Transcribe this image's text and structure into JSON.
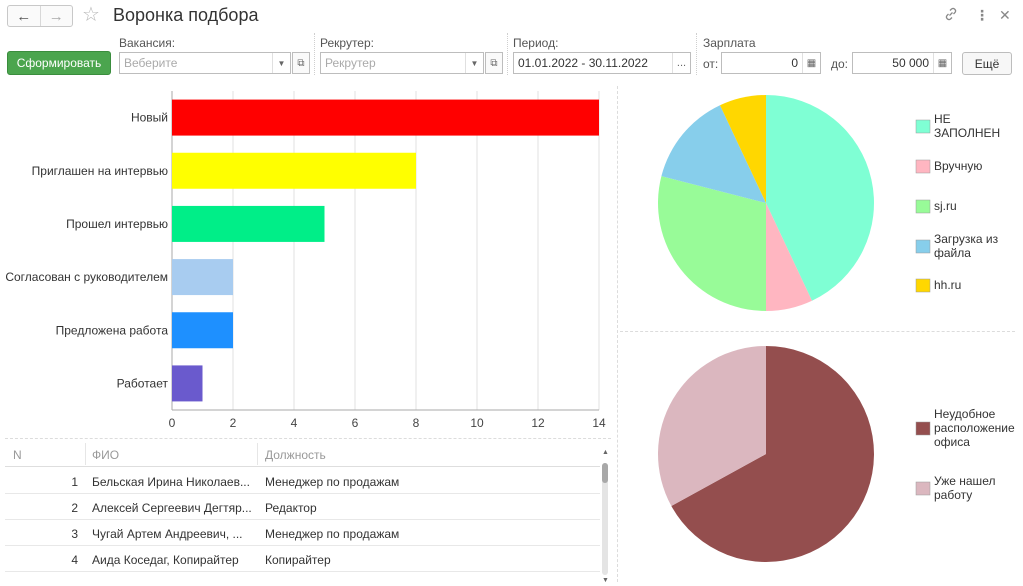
{
  "window": {
    "title": "Воронка подбора"
  },
  "icons": [
    "back-arrow-icon",
    "forward-arrow-icon",
    "star-icon",
    "link-icon",
    "more-icon",
    "close-icon",
    "dropdown-icon",
    "open-icon",
    "calculator-icon"
  ],
  "toolbar": {
    "generate_label": "Сформировать",
    "vacancy_label": "Вакансия:",
    "vacancy_placeholder": "Веберите",
    "recruiter_label": "Рекрутер:",
    "recruiter_placeholder": "Рекрутер",
    "period_label": "Период:",
    "period_value": "01.01.2022 - 30.11.2022",
    "period_more": "...",
    "salary_label": "Зарплата",
    "from_label": "от:",
    "from_value": "0",
    "to_label": "до:",
    "to_value": "50 000",
    "more_label": "Ещё"
  },
  "colors": {
    "primary_button": "#4ba54e",
    "grid": "#e0e0e0"
  },
  "chart_data": [
    {
      "type": "bar",
      "orientation": "horizontal",
      "categories": [
        "Новый",
        "Приглашен на интервью",
        "Прошел интервью",
        "Согласован с руководителем",
        "Предложена работа",
        "Работает"
      ],
      "values": [
        14,
        8,
        5,
        2,
        2,
        1
      ],
      "colors": [
        "#ff0000",
        "#ffff00",
        "#00ee88",
        "#a8ccf0",
        "#1e90ff",
        "#6a5acd"
      ],
      "xlim": [
        0,
        14
      ],
      "xticks": [
        "0",
        "2",
        "4",
        "6",
        "8",
        "10",
        "12",
        "14"
      ],
      "grid": true
    },
    {
      "type": "pie",
      "legend_position": "right",
      "slices": [
        {
          "label": "НЕ ЗАПОЛНЕН",
          "value": 43,
          "color": "#7fffd4"
        },
        {
          "label": "Вручную",
          "value": 7,
          "color": "#ffb6c1"
        },
        {
          "label": "sj.ru",
          "value": 29,
          "color": "#98fb98"
        },
        {
          "label": "Загрузка из файла",
          "value": 14,
          "color": "#87ceeb"
        },
        {
          "label": "hh.ru",
          "value": 7,
          "color": "#ffd700"
        }
      ],
      "legend_lines": [
        [
          "НЕ",
          "ЗАПОЛНЕН"
        ],
        [
          "Вручную"
        ],
        [
          "sj.ru"
        ],
        [
          "Загрузка из",
          "файла"
        ],
        [
          "hh.ru"
        ]
      ]
    },
    {
      "type": "pie",
      "legend_position": "right",
      "slices": [
        {
          "label": "Неудобное расположение офиса",
          "value": 67,
          "color": "#944e4e"
        },
        {
          "label": "Уже нашел работу",
          "value": 33,
          "color": "#dbb7bf"
        }
      ],
      "legend_lines": [
        [
          "Неудобное",
          "расположение",
          "офиса"
        ],
        [
          "Уже нашел",
          "работу"
        ]
      ]
    }
  ],
  "table": {
    "columns": [
      "N",
      "ФИО",
      "Должность"
    ],
    "rows": [
      {
        "n": "1",
        "fio": "Бельская Ирина Николаев...",
        "position": "Менеджер по продажам"
      },
      {
        "n": "2",
        "fio": "Алексей Сергеевич Дегтяр...",
        "position": "Редактор"
      },
      {
        "n": "3",
        "fio": "Чугай Артем Андреевич, ...",
        "position": "Менеджер по продажам"
      },
      {
        "n": "4",
        "fio": "Аида Коседаг, Копирайтер",
        "position": "Копирайтер"
      }
    ]
  }
}
